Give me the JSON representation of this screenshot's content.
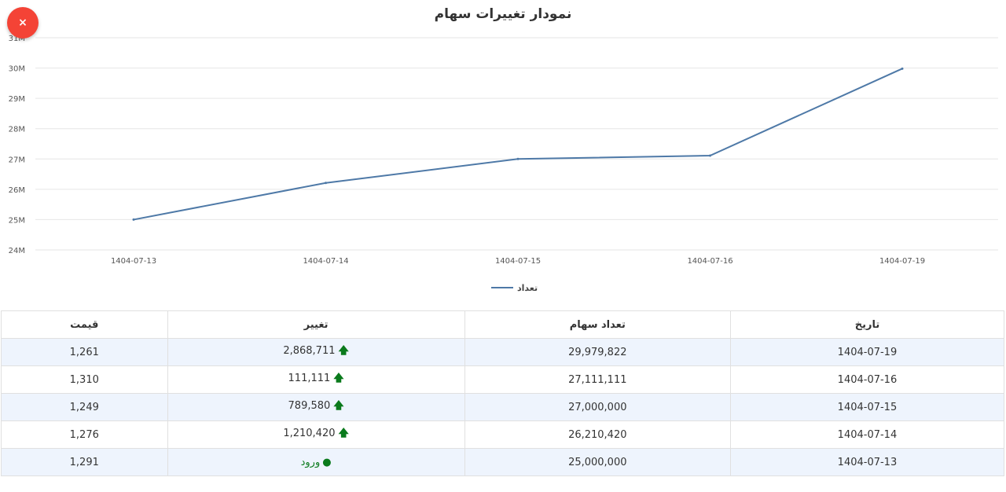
{
  "header": {
    "title": "نمودار تغییرات سهام",
    "close_label": "×"
  },
  "colors": {
    "line": "#4e79a7",
    "grid": "#e6e6e6",
    "close": "#f44336",
    "up": "#0a7a1c"
  },
  "chart_data": {
    "type": "line",
    "categories": [
      "1404-07-13",
      "1404-07-14",
      "1404-07-15",
      "1404-07-16",
      "1404-07-19"
    ],
    "series": [
      {
        "name": "تعداد",
        "values": [
          25000000,
          26210420,
          27000000,
          27111111,
          29979822
        ]
      }
    ],
    "y_ticks": [
      "24M",
      "25M",
      "26M",
      "27M",
      "28M",
      "29M",
      "30M",
      "31M"
    ],
    "ylim": [
      24000000,
      31000000
    ],
    "grid": true,
    "legend_position": "bottom"
  },
  "table": {
    "headers": {
      "date": "تاریخ",
      "count": "تعداد سهام",
      "change": "تغییر",
      "price": "قیمت"
    },
    "rows": [
      {
        "date": "1404-07-19",
        "count": "29,979,822",
        "change": "2,868,711",
        "price": "1,261",
        "icon": "arrow-up-icon"
      },
      {
        "date": "1404-07-16",
        "count": "27,111,111",
        "change": "111,111",
        "price": "1,310",
        "icon": "arrow-up-icon"
      },
      {
        "date": "1404-07-15",
        "count": "27,000,000",
        "change": "789,580",
        "price": "1,249",
        "icon": "arrow-up-icon"
      },
      {
        "date": "1404-07-14",
        "count": "26,210,420",
        "change": "1,210,420",
        "price": "1,276",
        "icon": "arrow-up-icon"
      },
      {
        "date": "1404-07-13",
        "count": "25,000,000",
        "change": "ورود",
        "price": "1,291",
        "icon": "pin-icon"
      }
    ]
  }
}
